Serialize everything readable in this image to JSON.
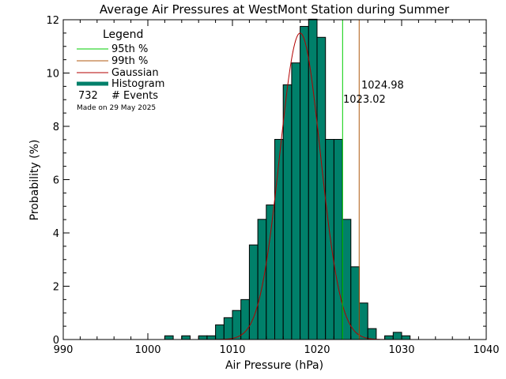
{
  "colors": {
    "histogram": "#00806a",
    "gaussian": "#b30000",
    "p95": "#00cc00",
    "p99": "#b05a10",
    "made_on": "#b4b4b4"
  },
  "chart_data": {
    "type": "bar",
    "title": "Average Air Pressures at WestMont Station during Summer",
    "xlabel": "Air Pressure (hPa)",
    "ylabel": "Probability (%)",
    "xlim": [
      990,
      1040
    ],
    "ylim": [
      0,
      12
    ],
    "x_ticks": [
      "990",
      "1000",
      "1010",
      "1020",
      "1030",
      "1040"
    ],
    "y_ticks": [
      "0",
      "2",
      "4",
      "6",
      "8",
      "10",
      "12"
    ],
    "bin_width": 1,
    "bins": [
      {
        "x": 1002,
        "y": 0.14
      },
      {
        "x": 1004,
        "y": 0.14
      },
      {
        "x": 1006,
        "y": 0.14
      },
      {
        "x": 1007,
        "y": 0.14
      },
      {
        "x": 1008,
        "y": 0.55
      },
      {
        "x": 1009,
        "y": 0.82
      },
      {
        "x": 1010,
        "y": 1.09
      },
      {
        "x": 1011,
        "y": 1.5
      },
      {
        "x": 1012,
        "y": 3.55
      },
      {
        "x": 1013,
        "y": 4.51
      },
      {
        "x": 1014,
        "y": 5.05
      },
      {
        "x": 1015,
        "y": 7.51
      },
      {
        "x": 1016,
        "y": 9.56
      },
      {
        "x": 1017,
        "y": 10.38
      },
      {
        "x": 1018,
        "y": 11.75
      },
      {
        "x": 1019,
        "y": 12.02
      },
      {
        "x": 1020,
        "y": 11.34
      },
      {
        "x": 1021,
        "y": 7.51
      },
      {
        "x": 1022,
        "y": 7.51
      },
      {
        "x": 1023,
        "y": 4.51
      },
      {
        "x": 1024,
        "y": 2.73
      },
      {
        "x": 1025,
        "y": 1.37
      },
      {
        "x": 1026,
        "y": 0.41
      },
      {
        "x": 1028,
        "y": 0.14
      },
      {
        "x": 1029,
        "y": 0.27
      },
      {
        "x": 1030,
        "y": 0.14
      }
    ],
    "gaussian": {
      "mean": 1018.0,
      "peak": 11.5,
      "sigma": 2.4
    },
    "percentile_95": {
      "value": 1023.02,
      "label": "1023.02"
    },
    "percentile_99": {
      "value": 1024.98,
      "label": "1024.98"
    },
    "legend": {
      "title": "Legend",
      "items": [
        {
          "label": "95th %",
          "style": "thin-green"
        },
        {
          "label": "99th %",
          "style": "thin-orange"
        },
        {
          "label": "Gaussian",
          "style": "thin-red"
        },
        {
          "label": "Histogram",
          "style": "thick-teal"
        }
      ],
      "events_count": "732",
      "events_label": "# Events",
      "position": "top-left"
    },
    "made_on": "Made on 29 May 2025"
  }
}
